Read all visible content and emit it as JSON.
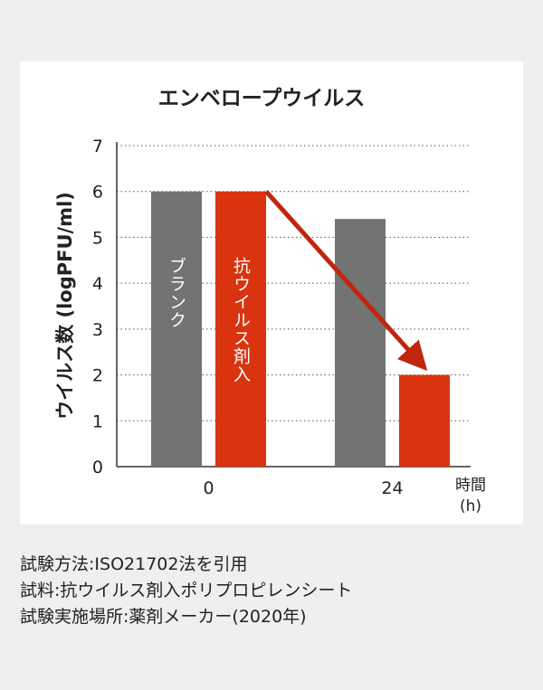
{
  "chart_data": {
    "type": "bar",
    "title": "エンベロープウイルス",
    "ylabel": "ウイルス数 (logPFU/ml)",
    "xlabel_lines": [
      "時間",
      "(h)"
    ],
    "ylim": [
      0,
      7
    ],
    "yticks": [
      0,
      1,
      2,
      3,
      4,
      5,
      6,
      7
    ],
    "grid": true,
    "categories": [
      "0",
      "24"
    ],
    "series": [
      {
        "name": "ブランク",
        "color": "#737373",
        "values": [
          6.0,
          5.4
        ]
      },
      {
        "name": "抗ウイルス剤入",
        "color": "#d9330f",
        "values": [
          6.0,
          2.0
        ]
      }
    ],
    "annotation": {
      "type": "arrow",
      "color": "#c0250d",
      "from_series": 1,
      "from_category": 0,
      "to_category": 1
    }
  },
  "notes": [
    "試験方法:ISO21702法を引用",
    "試料:抗ウイルス剤入ポリプロピレンシート",
    "試験実施場所:薬剤メーカー(2020年)"
  ]
}
